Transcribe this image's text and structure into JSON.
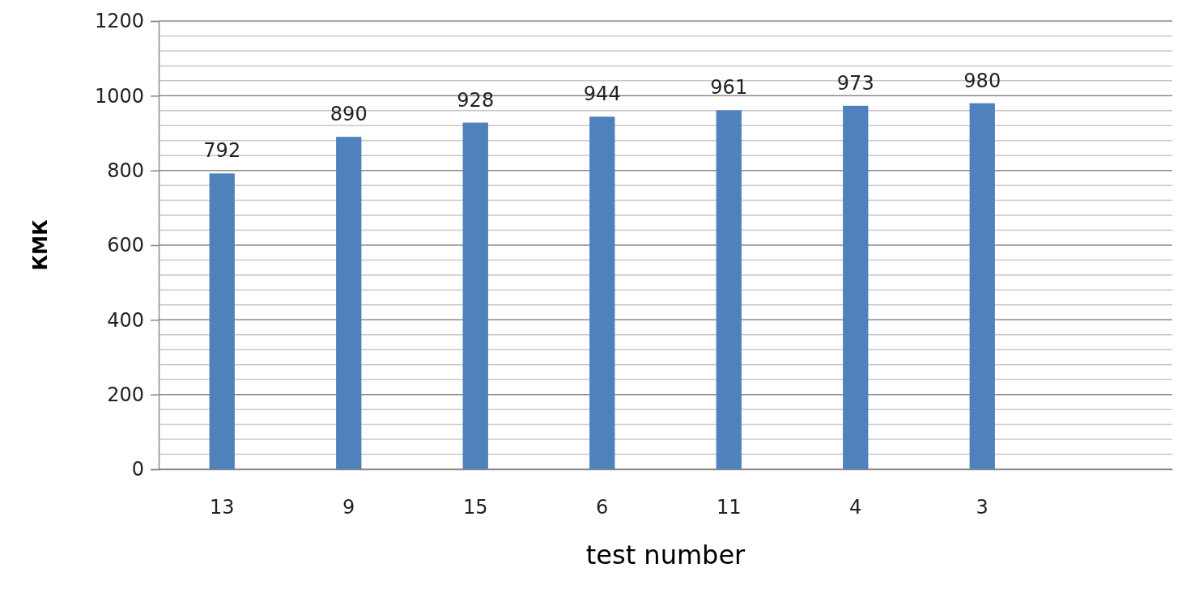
{
  "chart_data": {
    "type": "bar",
    "xlabel": "test number",
    "ylabel": "КМК",
    "categories": [
      "13",
      "9",
      "15",
      "6",
      "11",
      "4",
      "3",
      null
    ],
    "values": [
      792,
      890,
      928,
      944,
      961,
      973,
      980,
      null
    ],
    "color": "#4f81bd",
    "ylim": [
      0,
      1200
    ],
    "yticks": [
      0,
      200,
      400,
      600,
      800,
      1000,
      1200
    ],
    "grid": true,
    "data_labels": true
  }
}
